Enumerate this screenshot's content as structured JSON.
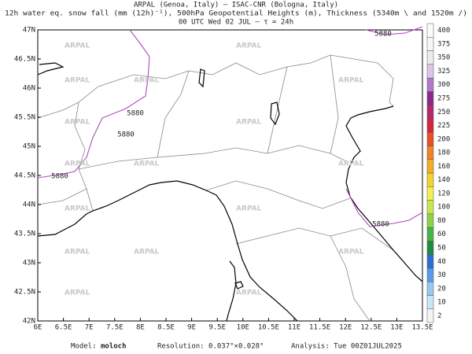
{
  "header": {
    "line1": "ARPAL (Genoa, Italy)  –  ISAC-CNR (Bologna, Italy)",
    "line2": "12h water eq. snow fall (mm (12h)⁻¹), 500hPa Geopotential Heights (m), Thickness (5340m \\ and 1520m /)",
    "line3": "00 UTC Wed 02 JUL  –  τ = 24h"
  },
  "map": {
    "lonlim": [
      6,
      13.5
    ],
    "latlim": [
      42,
      47
    ],
    "lon_ticks": [
      {
        "value": 6,
        "label": "6E"
      },
      {
        "value": 6.5,
        "label": "6.5E"
      },
      {
        "value": 7,
        "label": "7E"
      },
      {
        "value": 7.5,
        "label": "7.5E"
      },
      {
        "value": 8,
        "label": "8E"
      },
      {
        "value": 8.5,
        "label": "8.5E"
      },
      {
        "value": 9,
        "label": "9E"
      },
      {
        "value": 9.5,
        "label": "9.5E"
      },
      {
        "value": 10,
        "label": "10E"
      },
      {
        "value": 10.5,
        "label": "10.5E"
      },
      {
        "value": 11,
        "label": "11E"
      },
      {
        "value": 11.5,
        "label": "11.5E"
      },
      {
        "value": 12,
        "label": "12E"
      },
      {
        "value": 12.5,
        "label": "12.5E"
      },
      {
        "value": 13,
        "label": "13E"
      },
      {
        "value": 13.5,
        "label": "13.5E"
      }
    ],
    "lat_ticks": [
      {
        "value": 42,
        "label": "42N"
      },
      {
        "value": 42.5,
        "label": "42.5N"
      },
      {
        "value": 43,
        "label": "43N"
      },
      {
        "value": 43.5,
        "label": "43.5N"
      },
      {
        "value": 44,
        "label": "44N"
      },
      {
        "value": 44.5,
        "label": "44.5N"
      },
      {
        "value": 45,
        "label": "45N"
      },
      {
        "value": 45.5,
        "label": "45.5N"
      },
      {
        "value": 46,
        "label": "46N"
      },
      {
        "value": 46.5,
        "label": "46.5N"
      },
      {
        "value": 47,
        "label": "47N"
      }
    ],
    "contour_label": "5880",
    "watermark": "ARPAL"
  },
  "colorbar": {
    "levels": [
      2,
      10,
      20,
      30,
      40,
      50,
      60,
      80,
      100,
      120,
      140,
      160,
      180,
      200,
      225,
      250,
      275,
      300,
      325,
      350,
      375,
      400
    ],
    "colors": [
      "#f4f4f4",
      "#c8e6fa",
      "#96c8f0",
      "#5a9be6",
      "#2d6ed2",
      "#1e8c3c",
      "#46b446",
      "#8cd24b",
      "#c8e650",
      "#f5f050",
      "#f5d232",
      "#f5aa28",
      "#f08228",
      "#e65028",
      "#d2283c",
      "#b4286e",
      "#8c288c",
      "#b478c8",
      "#dcc8e6",
      "#ececec",
      "#f6f6f6",
      "#fbfbfb"
    ]
  },
  "footer": {
    "model_label": "Model:",
    "model": "moloch",
    "resolution": "Resolution: 0.037°×0.028°",
    "analysis": "Analysis: Tue 00Z01JUL2025"
  }
}
